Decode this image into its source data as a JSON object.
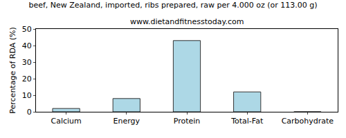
{
  "chart_data": {
    "type": "bar",
    "title": "beef, New Zealand, imported, ribs prepared, raw per 4.000 oz (or 113.00 g)",
    "subtitle": "www.dietandfitnesstoday.com",
    "y_label": "Percentage of RDA (%)",
    "categories": [
      "Calcium",
      "Energy",
      "Protein",
      "Total-Fat",
      "Carbohydrate"
    ],
    "values": [
      2,
      8,
      43,
      12,
      0
    ],
    "color": "#add8e6",
    "ylim": [
      0,
      50
    ],
    "yticks": [
      0,
      10,
      20,
      30,
      40,
      50
    ],
    "grid": false
  }
}
